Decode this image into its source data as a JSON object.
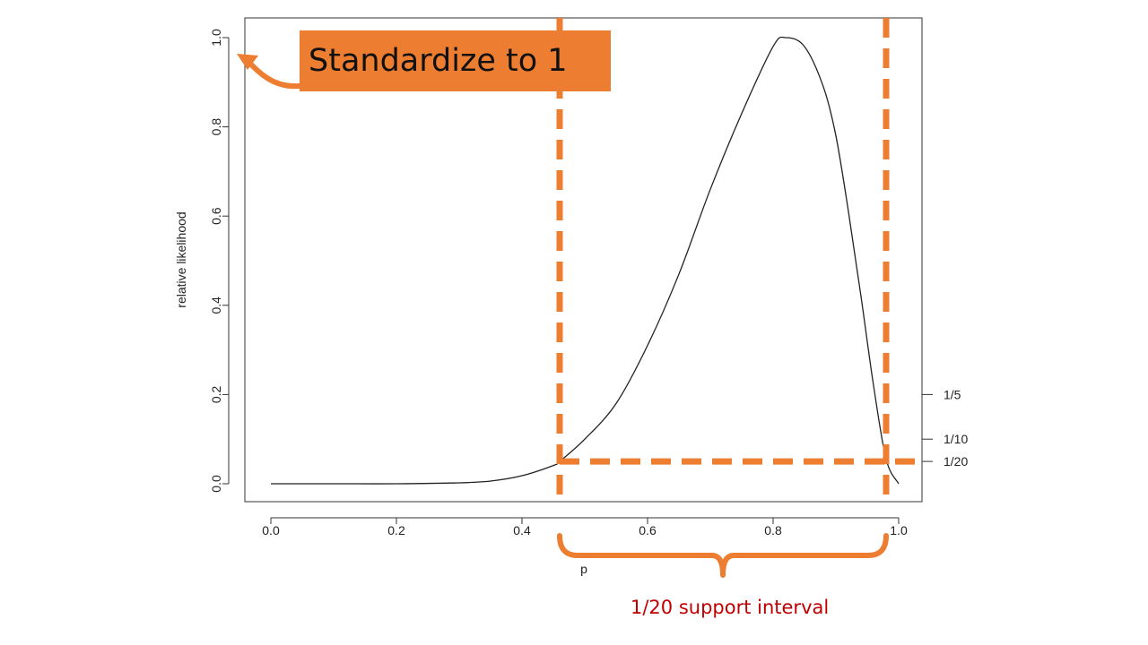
{
  "chart_data": {
    "type": "line",
    "title": "",
    "xlabel": "p",
    "ylabel": "relative likelihood",
    "xlim": [
      0,
      1
    ],
    "ylim": [
      0,
      1
    ],
    "x_ticks": [
      "0.0",
      "0.2",
      "0.4",
      "0.6",
      "0.8",
      "1.0"
    ],
    "y_ticks": [
      "0.0",
      "0.2",
      "0.4",
      "0.6",
      "0.8",
      "1.0"
    ],
    "right_axis_ticks": [
      {
        "label": "1/5",
        "value": 0.2
      },
      {
        "label": "1/10",
        "value": 0.1
      },
      {
        "label": "1/20",
        "value": 0.05
      }
    ],
    "series": [
      {
        "x": [
          0.0,
          0.1,
          0.2,
          0.3,
          0.35,
          0.4,
          0.45,
          0.46,
          0.5,
          0.55,
          0.6,
          0.65,
          0.7,
          0.75,
          0.8,
          0.82,
          0.85,
          0.88,
          0.9,
          0.92,
          0.94,
          0.96,
          0.98,
          1.0
        ],
        "y": [
          0.0,
          0.0,
          0.0,
          0.002,
          0.006,
          0.018,
          0.041,
          0.05,
          0.1,
          0.18,
          0.31,
          0.47,
          0.66,
          0.83,
          0.98,
          1.0,
          0.98,
          0.89,
          0.78,
          0.61,
          0.42,
          0.22,
          0.055,
          0.0
        ]
      }
    ],
    "grid": false,
    "support_interval": {
      "level": 0.05,
      "lower": 0.46,
      "upper": 0.98
    },
    "highlight_color": "#ED7D31"
  },
  "annotations": {
    "callout_text": "Standardize to 1",
    "interval_label": "1/20 support interval"
  }
}
